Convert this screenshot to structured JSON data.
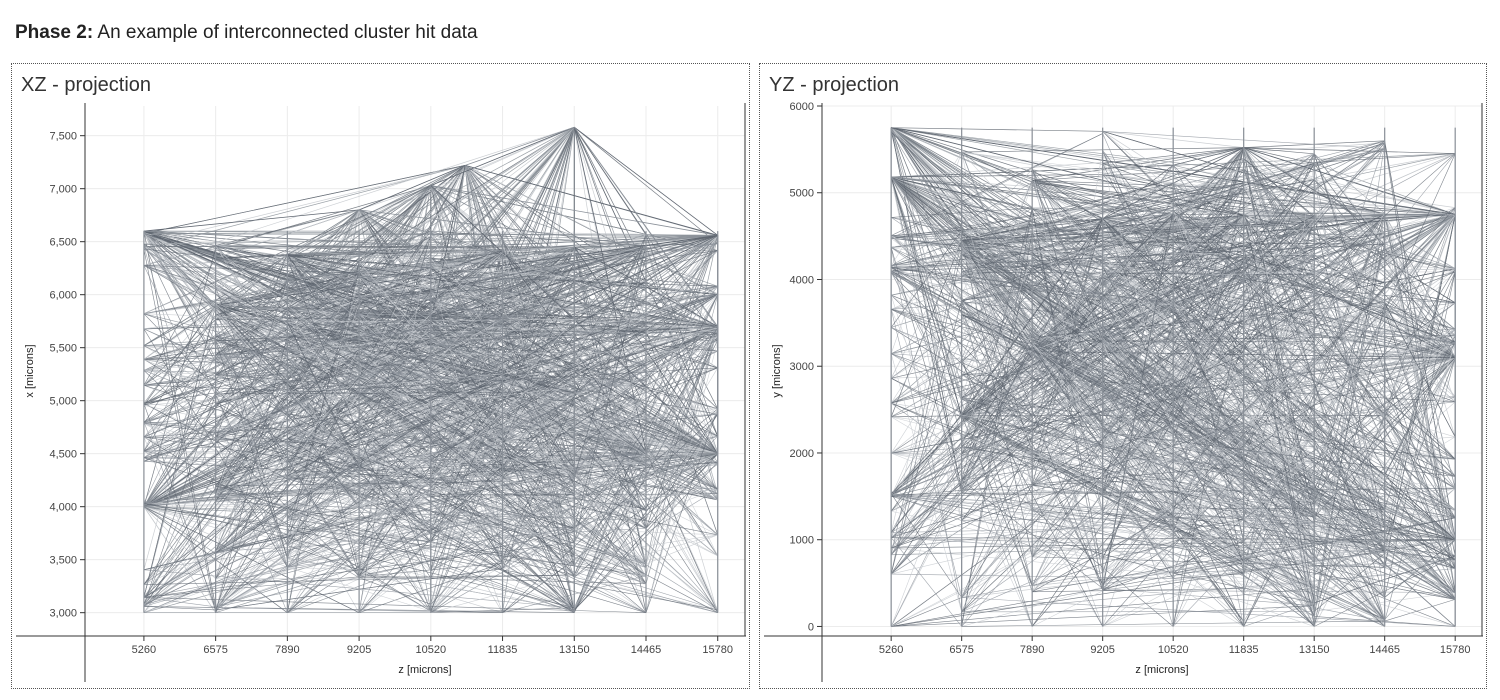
{
  "heading": {
    "bold": "Phase 2:",
    "text": "An example of interconnected cluster hit data"
  },
  "colors": {
    "line_dark": "#5f6670",
    "line_mid": "#8a9098",
    "line_light": "#c4c8cd",
    "grid": "#ececec"
  },
  "chart_data": [
    {
      "type": "line",
      "title": "XZ - projection",
      "xlabel": "z [microns]",
      "ylabel": "x [microns]",
      "xlim": [
        4180,
        16280
      ],
      "ylim": [
        2780,
        7780
      ],
      "xticks": [
        5260,
        6575,
        7890,
        9205,
        10520,
        11835,
        13150,
        14465,
        15780
      ],
      "xtick_labels": [
        "5260",
        "6575",
        "7890",
        "9205",
        "10520",
        "11835",
        "13150",
        "14465",
        "15780"
      ],
      "yticks": [
        3000,
        3500,
        4000,
        4500,
        5000,
        5500,
        6000,
        6500,
        7000,
        7500
      ],
      "ytick_labels": [
        "3,000",
        "3,500",
        "4,000",
        "4,500",
        "5,000",
        "5,500",
        "6,000",
        "6,500",
        "7,000",
        "7,500"
      ],
      "grid": true,
      "series_note": "all hit pairs connected",
      "hubs": [
        [
          5260,
          6600
        ],
        [
          7890,
          6380
        ],
        [
          8550,
          5850
        ],
        [
          9205,
          6800
        ],
        [
          10520,
          7030
        ],
        [
          10520,
          5750
        ],
        [
          11150,
          7220
        ],
        [
          11835,
          5720
        ],
        [
          11835,
          6420
        ],
        [
          13150,
          7580
        ],
        [
          13150,
          6450
        ],
        [
          14465,
          6460
        ],
        [
          14465,
          4520
        ],
        [
          15780,
          6560
        ],
        [
          15780,
          4500
        ],
        [
          15780,
          5700
        ],
        [
          5260,
          4000
        ],
        [
          6575,
          5900
        ]
      ],
      "layers": [
        5260,
        6575,
        7890,
        9205,
        10520,
        11835,
        13150,
        14465,
        15780
      ],
      "hit_range": [
        3000,
        6600
      ]
    },
    {
      "type": "line",
      "title": "YZ - projection",
      "xlabel": "z [microns]",
      "ylabel": "y [microns]",
      "xlim": [
        3970,
        16280
      ],
      "ylim": [
        -110,
        6000
      ],
      "xticks": [
        5260,
        6575,
        7890,
        9205,
        10520,
        11835,
        13150,
        14465,
        15780
      ],
      "xtick_labels": [
        "5260",
        "6575",
        "7890",
        "9205",
        "10520",
        "11835",
        "13150",
        "14465",
        "15780"
      ],
      "yticks": [
        0,
        1000,
        2000,
        3000,
        4000,
        5000,
        6000
      ],
      "ytick_labels": [
        "0",
        "1000",
        "2000",
        "3000",
        "4000",
        "5000",
        "6000"
      ],
      "grid": true,
      "series_note": "all hit pairs connected",
      "hubs": [
        [
          5260,
          5750
        ],
        [
          5260,
          5180
        ],
        [
          6575,
          2430
        ],
        [
          7890,
          3170
        ],
        [
          10520,
          4750
        ],
        [
          11835,
          5520
        ],
        [
          13150,
          4730
        ],
        [
          14465,
          4750
        ],
        [
          15780,
          4750
        ],
        [
          15780,
          3100
        ],
        [
          15780,
          1000
        ],
        [
          11835,
          4740
        ],
        [
          9205,
          4700
        ],
        [
          6575,
          4450
        ]
      ],
      "layers": [
        5260,
        6575,
        7890,
        9205,
        10520,
        11835,
        13150,
        14465,
        15780
      ],
      "hit_range": [
        0,
        5750
      ]
    }
  ]
}
